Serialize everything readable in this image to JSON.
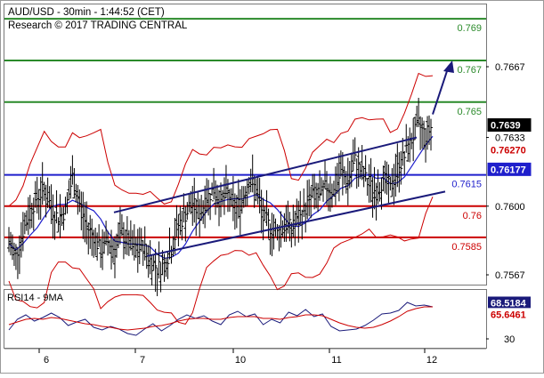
{
  "header": {
    "title": "AUD/USD - 30min - 1:44:52 (CET)",
    "subtitle": "Research © 2017 TRADING CENTRAL"
  },
  "colors": {
    "price_bars": "#000000",
    "bollinger": "#cc0000",
    "moving_average": "#1f1fcc",
    "channel": "#1a1a7a",
    "resistance": "#2a8a2a",
    "pivot": "#1f1fcc",
    "support": "#cc0000",
    "arrow": "#1a1a7a",
    "rsi_line": "#1a1a7a",
    "rsi_ma": "#cc0000"
  },
  "chart_data": [
    {
      "type": "ohlc",
      "name": "AUD/USD 30min price",
      "ylim": [
        0.7555,
        0.77
      ],
      "x_labels": [
        "6",
        "7",
        "10",
        "11",
        "12"
      ],
      "y_ticks": [
        "0.7667",
        "0.7633",
        "0.7600",
        "0.7567"
      ],
      "levels": [
        {
          "label": "0.769",
          "value": 0.769,
          "kind": "resistance"
        },
        {
          "label": "0.767",
          "value": 0.767,
          "kind": "resistance"
        },
        {
          "label": "0.765",
          "value": 0.765,
          "kind": "resistance"
        },
        {
          "label": "0.7615",
          "value": 0.7615,
          "kind": "pivot"
        },
        {
          "label": "0.76",
          "value": 0.76,
          "kind": "support"
        },
        {
          "label": "0.7585",
          "value": 0.7585,
          "kind": "support"
        }
      ],
      "price_badges": [
        {
          "label": "0.7639",
          "value": 0.7639,
          "bg": "#000000",
          "fg": "#ffffff"
        },
        {
          "label": "0.76270",
          "value": 0.7627,
          "bg": "#ffffff",
          "fg": "#cc0000"
        },
        {
          "label": "0.76177",
          "value": 0.76177,
          "bg": "#1f1fcc",
          "fg": "#ffffff"
        }
      ],
      "close_series": [
        0.7582,
        0.7576,
        0.7588,
        0.7598,
        0.7604,
        0.7608,
        0.76,
        0.7594,
        0.7598,
        0.7614,
        0.7601,
        0.759,
        0.7586,
        0.7578,
        0.7583,
        0.7579,
        0.7587,
        0.7582,
        0.7578,
        0.7581,
        0.7574,
        0.757,
        0.7572,
        0.758,
        0.7591,
        0.7596,
        0.7601,
        0.7596,
        0.7604,
        0.7608,
        0.7602,
        0.7606,
        0.7598,
        0.7603,
        0.7613,
        0.7608,
        0.7594,
        0.759,
        0.7587,
        0.7592,
        0.7589,
        0.7593,
        0.7599,
        0.7606,
        0.7604,
        0.761,
        0.7607,
        0.7616,
        0.7612,
        0.7622,
        0.7616,
        0.761,
        0.7607,
        0.7613,
        0.7608,
        0.7618,
        0.7624,
        0.7632,
        0.7639,
        0.7634,
        0.7639
      ],
      "channel": {
        "upper": [
          0.7597,
          0.7633
        ],
        "lower": [
          0.7576,
          0.7607
        ]
      },
      "arrow_target": 0.767
    },
    {
      "type": "line",
      "name": "RSI14 - 9MA",
      "label": "RSI14 - 9MA",
      "y_ticks": [
        "30"
      ],
      "ylim": [
        20,
        85
      ],
      "series": [
        {
          "values": [
            40,
            52,
            57,
            50,
            54,
            59,
            54,
            45,
            49,
            52,
            43,
            40,
            44,
            41,
            36,
            34,
            41,
            47,
            39,
            45,
            52,
            57,
            53,
            56,
            50,
            46,
            57,
            61,
            55,
            58,
            46,
            52,
            48,
            60,
            56,
            63,
            55,
            58,
            44,
            39,
            40,
            41,
            45,
            51,
            58,
            59,
            62,
            71,
            67,
            68,
            66
          ]
        },
        {
          "values": [
            46,
            49,
            52,
            53,
            52,
            54,
            53,
            51,
            49,
            47,
            46,
            44,
            43,
            41,
            40,
            41,
            42,
            44,
            45,
            47,
            50,
            52,
            53,
            53,
            52,
            52,
            54,
            55,
            55,
            55,
            53,
            53,
            52,
            54,
            55,
            57,
            57,
            56,
            52,
            48,
            45,
            43,
            42,
            43,
            46,
            50,
            55,
            61,
            64,
            66,
            66
          ]
        }
      ],
      "badges": [
        {
          "label": "68.5184",
          "value": 68.5184,
          "bg": "#1a1a7a",
          "fg": "#ffffff"
        },
        {
          "label": "65.6461",
          "value": 65.6461,
          "bg": "#ffffff",
          "fg": "#cc0000"
        }
      ]
    }
  ]
}
